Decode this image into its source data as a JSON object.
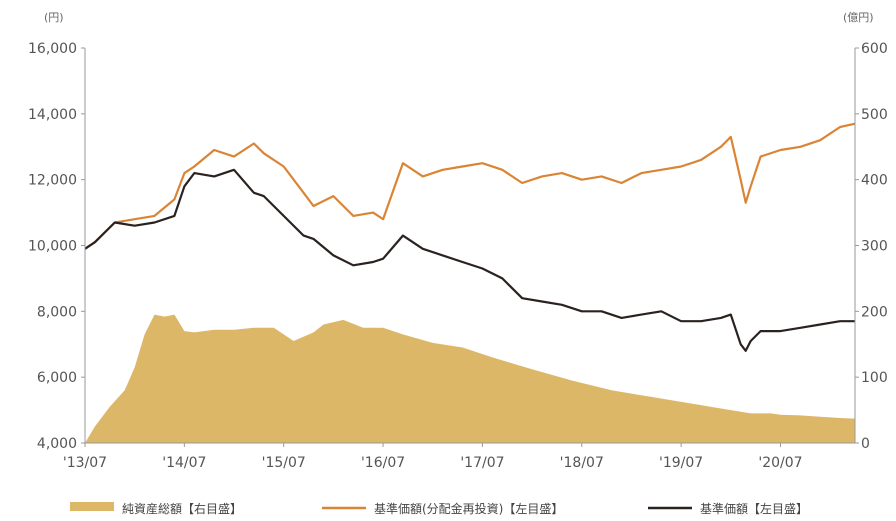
{
  "chart_data": {
    "type": "line",
    "title": "",
    "left_axis": {
      "unit": "(円)",
      "min": 4000,
      "max": 16000,
      "ticks": [
        "4,000",
        "6,000",
        "8,000",
        "10,000",
        "12,000",
        "14,000",
        "16,000"
      ],
      "tick_values": [
        4000,
        6000,
        8000,
        10000,
        12000,
        14000,
        16000
      ]
    },
    "right_axis": {
      "unit": "(億円)",
      "min": 0,
      "max": 600,
      "ticks": [
        "0",
        "100",
        "200",
        "300",
        "400",
        "500",
        "600"
      ],
      "tick_values": [
        0,
        100,
        200,
        300,
        400,
        500,
        600
      ]
    },
    "x_axis": {
      "start": 2013.5,
      "end": 2021.25,
      "ticks": [
        "'13/07",
        "'14/07",
        "'15/07",
        "'16/07",
        "'17/07",
        "'18/07",
        "'19/07",
        "'20/07"
      ],
      "tick_values": [
        2013.5,
        2014.5,
        2015.5,
        2016.5,
        2017.5,
        2018.5,
        2019.5,
        2020.5
      ]
    },
    "grid": false,
    "legend_position": "bottom",
    "series": [
      {
        "name": "純資産総額【右目盛】",
        "axis": "right",
        "kind": "area",
        "color": "#DDB768",
        "x": [
          2013.5,
          2013.6,
          2013.75,
          2013.9,
          2014.0,
          2014.1,
          2014.2,
          2014.3,
          2014.4,
          2014.5,
          2014.6,
          2014.8,
          2015.0,
          2015.2,
          2015.4,
          2015.5,
          2015.6,
          2015.8,
          2015.9,
          2016.1,
          2016.3,
          2016.5,
          2016.7,
          2017.0,
          2017.3,
          2017.6,
          2018.0,
          2018.4,
          2018.8,
          2019.2,
          2019.6,
          2020.0,
          2020.2,
          2020.4,
          2020.5,
          2020.7,
          2020.9,
          2021.1,
          2021.25
        ],
        "values": [
          0,
          25,
          55,
          80,
          115,
          165,
          195,
          192,
          195,
          170,
          168,
          172,
          172,
          175,
          175,
          165,
          155,
          168,
          180,
          187,
          175,
          175,
          165,
          152,
          145,
          130,
          112,
          95,
          80,
          70,
          60,
          50,
          45,
          45,
          43,
          42,
          40,
          38,
          37
        ]
      },
      {
        "name": "基準価額(分配金再投資)【左目盛】",
        "axis": "left",
        "kind": "line",
        "color": "#D98535",
        "x": [
          2013.5,
          2013.6,
          2013.8,
          2014.0,
          2014.2,
          2014.4,
          2014.5,
          2014.6,
          2014.8,
          2015.0,
          2015.2,
          2015.3,
          2015.5,
          2015.7,
          2015.8,
          2016.0,
          2016.2,
          2016.4,
          2016.5,
          2016.7,
          2016.9,
          2017.1,
          2017.3,
          2017.5,
          2017.7,
          2017.9,
          2018.1,
          2018.3,
          2018.5,
          2018.7,
          2018.9,
          2019.1,
          2019.3,
          2019.5,
          2019.7,
          2019.9,
          2020.0,
          2020.1,
          2020.15,
          2020.2,
          2020.3,
          2020.5,
          2020.7,
          2020.9,
          2021.1,
          2021.25
        ],
        "values": [
          9900,
          10100,
          10700,
          10800,
          10900,
          11400,
          12200,
          12400,
          12900,
          12700,
          13100,
          12800,
          12400,
          11600,
          11200,
          11500,
          10900,
          11000,
          10800,
          12500,
          12100,
          12300,
          12400,
          12500,
          12300,
          11900,
          12100,
          12200,
          12000,
          12100,
          11900,
          12200,
          12300,
          12400,
          12600,
          13000,
          13300,
          12000,
          11300,
          11800,
          12700,
          12900,
          13000,
          13200,
          13600,
          13700
        ]
      },
      {
        "name": "基準価額【左目盛】",
        "axis": "left",
        "kind": "line",
        "color": "#2B2220",
        "x": [
          2013.5,
          2013.6,
          2013.8,
          2014.0,
          2014.2,
          2014.4,
          2014.5,
          2014.6,
          2014.8,
          2015.0,
          2015.2,
          2015.3,
          2015.5,
          2015.7,
          2015.8,
          2016.0,
          2016.2,
          2016.4,
          2016.5,
          2016.7,
          2016.9,
          2017.1,
          2017.3,
          2017.5,
          2017.7,
          2017.9,
          2018.1,
          2018.3,
          2018.5,
          2018.7,
          2018.9,
          2019.1,
          2019.3,
          2019.5,
          2019.7,
          2019.9,
          2020.0,
          2020.1,
          2020.15,
          2020.2,
          2020.3,
          2020.5,
          2020.7,
          2020.9,
          2021.1,
          2021.25
        ],
        "values": [
          9900,
          10100,
          10700,
          10600,
          10700,
          10900,
          11800,
          12200,
          12100,
          12300,
          11600,
          11500,
          10900,
          10300,
          10200,
          9700,
          9400,
          9500,
          9600,
          10300,
          9900,
          9700,
          9500,
          9300,
          9000,
          8400,
          8300,
          8200,
          8000,
          8000,
          7800,
          7900,
          8000,
          7700,
          7700,
          7800,
          7900,
          7000,
          6800,
          7100,
          7400,
          7400,
          7500,
          7600,
          7700,
          7700
        ]
      }
    ]
  }
}
